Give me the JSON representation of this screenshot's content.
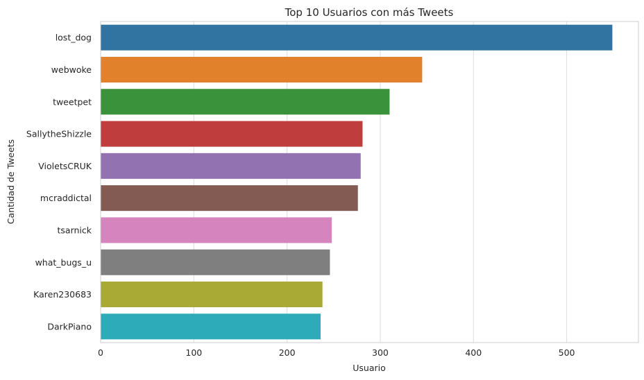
{
  "chart_data": {
    "type": "bar",
    "orientation": "horizontal",
    "title": "Top 10 Usuarios con más Tweets",
    "xlabel": "Usuario",
    "ylabel": "Cantidad de Tweets",
    "categories": [
      "lost_dog",
      "webwoke",
      "tweetpet",
      "SallytheShizzle",
      "VioletsCRUK",
      "mcraddictal",
      "tsarnick",
      "what_bugs_u",
      "Karen230683",
      "DarkPiano"
    ],
    "values": [
      549,
      345,
      310,
      281,
      279,
      276,
      248,
      246,
      238,
      236
    ],
    "colors": [
      "#3274a1",
      "#e1812c",
      "#3a923a",
      "#c03d3e",
      "#9372b2",
      "#845b53",
      "#d684bd",
      "#7f7f7f",
      "#a9aa35",
      "#2eabb8"
    ],
    "xlim": [
      0,
      577
    ],
    "xticks": [
      0,
      100,
      200,
      300,
      400,
      500
    ],
    "grid": true,
    "style": "whitegrid"
  }
}
